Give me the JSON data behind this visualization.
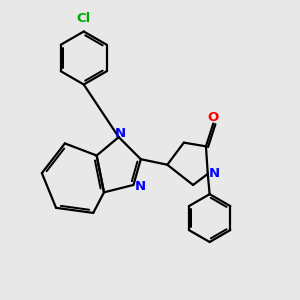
{
  "bg_color": "#e8e8e8",
  "bond_color": "#000000",
  "n_color": "#0000ff",
  "o_color": "#ff0000",
  "cl_color": "#00aa00",
  "line_width": 1.6,
  "dbo": 0.055,
  "font_size": 9.5,
  "xlim": [
    -1.5,
    5.5
  ],
  "ylim": [
    -3.5,
    4.5
  ]
}
